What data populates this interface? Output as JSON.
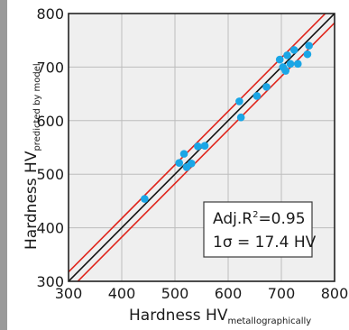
{
  "colors": {
    "side_strip": "#9a9a9a",
    "plot_background": "#efefef",
    "grid": "#bdbdbd",
    "frame": "#222222",
    "points": "#1aa6e6",
    "identity_line": "#111111",
    "band_lines": "#e0241b",
    "stats_box_border": "#3a3a3a"
  },
  "chart_data": {
    "type": "scatter",
    "xlabel": {
      "main": "Hardness HV",
      "subscript": "metallographically"
    },
    "ylabel": {
      "main": "Hardness HV",
      "subscript": "predicted by model"
    },
    "xlim": [
      300,
      800
    ],
    "ylim": [
      300,
      800
    ],
    "x_ticks": [
      300,
      400,
      500,
      600,
      700,
      800
    ],
    "y_ticks": [
      300,
      400,
      500,
      600,
      700,
      800
    ],
    "x_tick_labels": [
      "300",
      "400",
      "500",
      "600",
      "700",
      "800"
    ],
    "y_tick_labels": [
      "300",
      "400",
      "500",
      "600",
      "700",
      "800"
    ],
    "grid": true,
    "reference_lines": [
      {
        "kind": "identity",
        "slope": 1,
        "offset": 0
      },
      {
        "kind": "upper-band",
        "slope": 1,
        "offset": 17.4
      },
      {
        "kind": "lower-band",
        "slope": 1,
        "offset": -17.4
      }
    ],
    "points": [
      {
        "x": 443,
        "y": 454
      },
      {
        "x": 508,
        "y": 521
      },
      {
        "x": 517,
        "y": 538
      },
      {
        "x": 522,
        "y": 513
      },
      {
        "x": 531,
        "y": 520
      },
      {
        "x": 543,
        "y": 552
      },
      {
        "x": 556,
        "y": 553
      },
      {
        "x": 621,
        "y": 636
      },
      {
        "x": 624,
        "y": 606
      },
      {
        "x": 654,
        "y": 646
      },
      {
        "x": 672,
        "y": 663
      },
      {
        "x": 697,
        "y": 714
      },
      {
        "x": 703,
        "y": 700
      },
      {
        "x": 708,
        "y": 693
      },
      {
        "x": 711,
        "y": 722
      },
      {
        "x": 717,
        "y": 706
      },
      {
        "x": 724,
        "y": 732
      },
      {
        "x": 731,
        "y": 706
      },
      {
        "x": 749,
        "y": 724
      },
      {
        "x": 752,
        "y": 740
      }
    ],
    "annotation": {
      "line1_prefix": "Adj.R",
      "line1_sup": "2",
      "line1_suffix": "=0.95",
      "line2": "1σ = 17.4 HV",
      "placement": "bottom-right"
    }
  }
}
